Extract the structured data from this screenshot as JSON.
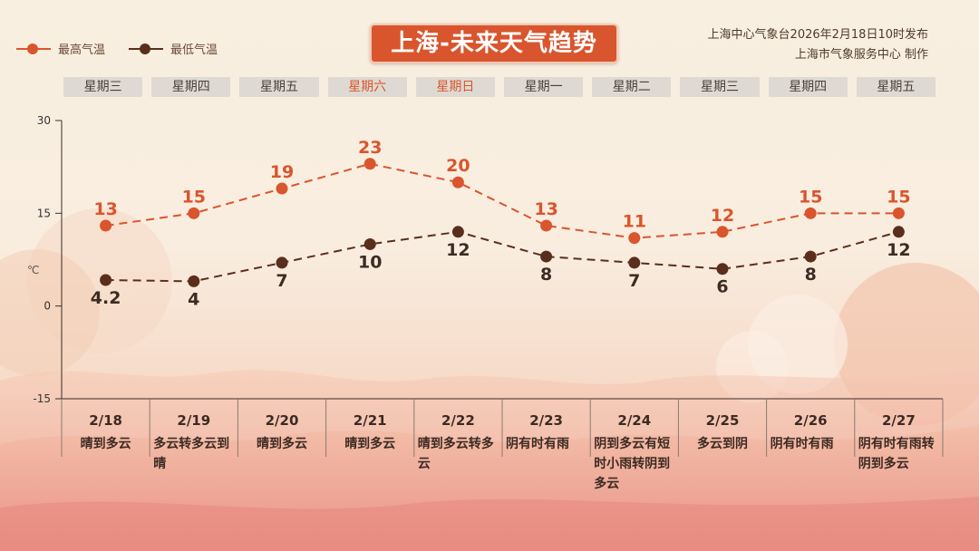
{
  "title": "上海-未来天气趋势",
  "source_line1": "上海中心气象台2026年2月18日10时发布",
  "source_line2": "上海市气象服务中心  制作",
  "legend": [
    {
      "label": "最高气温",
      "color": "#d9552d"
    },
    {
      "label": "最低气温",
      "color": "#5a2e1c"
    }
  ],
  "weekdays": [
    "星期三",
    "星期四",
    "星期五",
    "星期六",
    "星期日",
    "星期一",
    "星期二",
    "星期三",
    "星期四",
    "星期五"
  ],
  "weekend_flags": [
    false,
    false,
    false,
    true,
    true,
    false,
    false,
    false,
    false,
    false
  ],
  "y_unit": "℃",
  "weather": [
    "晴到多云",
    "多云转多云到晴",
    "晴到多云",
    "晴到多云",
    "晴到多云转多云",
    "阴有时有雨",
    "阴到多云有短时小雨转阴到多云",
    "多云到阴",
    "阴有时有雨",
    "阴有时有雨转阴到多云"
  ],
  "chart_data": {
    "type": "line",
    "categories": [
      "2/18",
      "2/19",
      "2/20",
      "2/21",
      "2/22",
      "2/23",
      "2/24",
      "2/25",
      "2/26",
      "2/27"
    ],
    "series": [
      {
        "name": "最高气温",
        "values": [
          13,
          15,
          19,
          23,
          20,
          13,
          11,
          12,
          15,
          15
        ],
        "color": "#d9552d"
      },
      {
        "name": "最低气温",
        "values": [
          4.2,
          4,
          7,
          10,
          12,
          8,
          7,
          6,
          8,
          12
        ],
        "color": "#5a2e1c"
      }
    ],
    "ylim": [
      -15,
      30
    ],
    "yticks": [
      -15,
      0,
      15,
      30
    ],
    "title": "",
    "xlabel": "",
    "ylabel": "℃",
    "legend_position": "top-left",
    "grid": false
  }
}
